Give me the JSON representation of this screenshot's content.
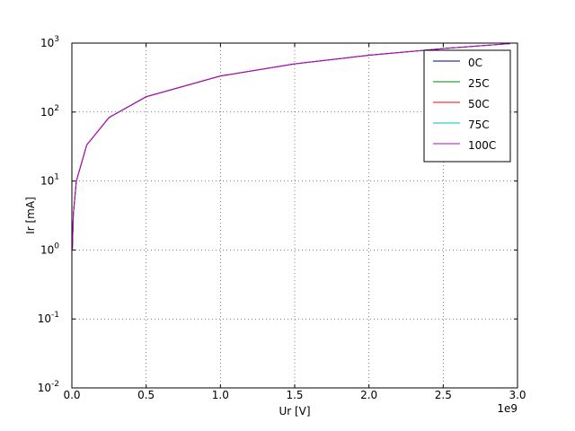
{
  "chart_data": {
    "type": "line",
    "xlabel": "Ur [V]",
    "ylabel": "Ir [mA]",
    "x_offset_label": "1e9",
    "x": [
      3000000,
      10000000,
      30000000,
      100000000,
      250000000,
      500000000,
      1000000000,
      1500000000,
      2000000000,
      2500000000,
      2950000000
    ],
    "series": [
      {
        "name": "0C",
        "color": "#000080",
        "values": [
          1,
          3.33,
          10,
          33.3,
          83.3,
          166.7,
          333.3,
          500,
          666.7,
          833.3,
          983.3
        ]
      },
      {
        "name": "25C",
        "color": "#008000",
        "values": [
          1,
          3.33,
          10,
          33.3,
          83.3,
          166.7,
          333.3,
          500,
          666.7,
          833.3,
          983.3
        ]
      },
      {
        "name": "50C",
        "color": "#ff0000",
        "values": [
          1,
          3.33,
          10,
          33.3,
          83.3,
          166.7,
          333.3,
          500,
          666.7,
          833.3,
          983.3
        ]
      },
      {
        "name": "75C",
        "color": "#00bfbf",
        "values": [
          1,
          3.33,
          10,
          33.3,
          83.3,
          166.7,
          333.3,
          500,
          666.7,
          833.3,
          983.3
        ]
      },
      {
        "name": "100C",
        "color": "#bf00bf",
        "values": [
          1,
          3.33,
          10,
          33.3,
          83.3,
          166.7,
          333.3,
          500,
          666.7,
          833.3,
          983.3
        ]
      }
    ],
    "xlim": [
      0,
      3000000000
    ],
    "xticks": [
      {
        "value": 0,
        "label": "0.0"
      },
      {
        "value": 500000000,
        "label": "0.5"
      },
      {
        "value": 1000000000,
        "label": "1.0"
      },
      {
        "value": 1500000000,
        "label": "1.5"
      },
      {
        "value": 2000000000,
        "label": "2.0"
      },
      {
        "value": 2500000000,
        "label": "2.5"
      },
      {
        "value": 3000000000,
        "label": "3.0"
      }
    ],
    "ylim": [
      0.01,
      1000
    ],
    "yscale": "log",
    "yticks": [
      {
        "value": 0.01,
        "label": "10",
        "exponent": "-2"
      },
      {
        "value": 0.1,
        "label": "10",
        "exponent": "-1"
      },
      {
        "value": 1,
        "label": "10",
        "exponent": "0"
      },
      {
        "value": 10,
        "label": "10",
        "exponent": "1"
      },
      {
        "value": 100,
        "label": "10",
        "exponent": "2"
      },
      {
        "value": 1000,
        "label": "10",
        "exponent": "3"
      }
    ],
    "grid": true,
    "legend": "upper right"
  }
}
